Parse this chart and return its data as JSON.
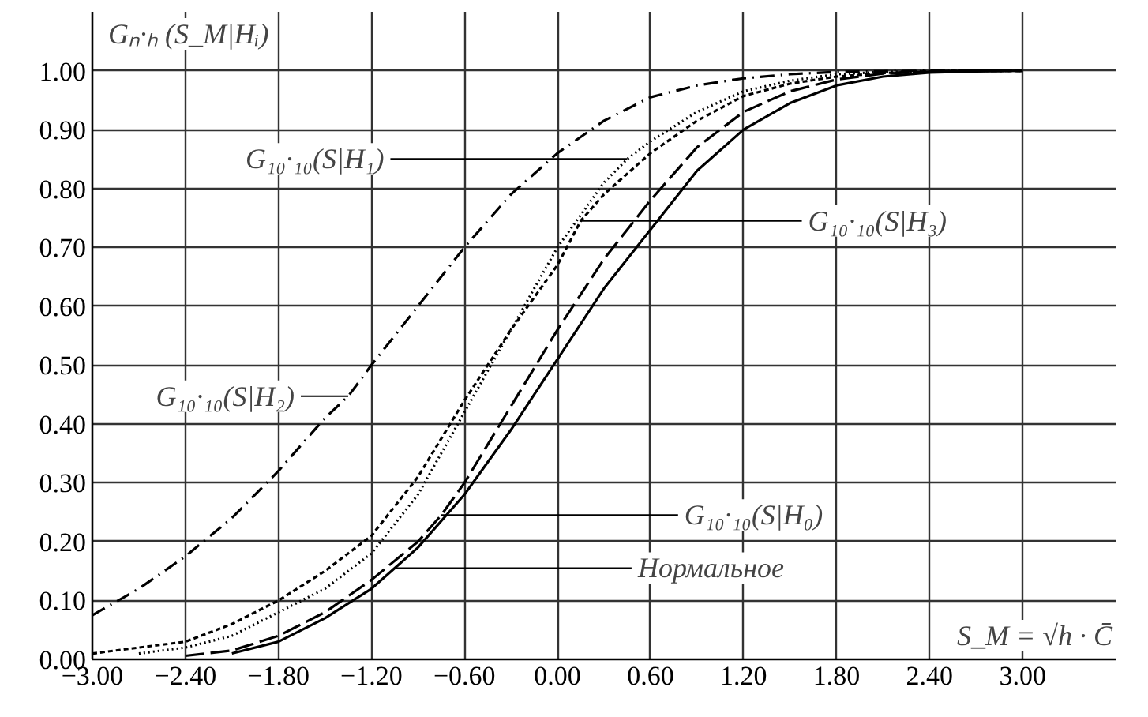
{
  "chart_data": {
    "type": "line",
    "xlabel": "S_M = √h · C̄",
    "ylabel": "Gₙ·ₕ (S_M|Hᵢ)",
    "series": [
      {
        "color": "#000000",
        "line_style": "dashdot",
        "x": [
          -3.0,
          -2.7,
          -2.4,
          -2.1,
          -1.8,
          -1.5,
          -1.35,
          -1.2,
          -0.9,
          -0.6,
          -0.3,
          0.0,
          0.3,
          0.6,
          0.9,
          1.2,
          1.5,
          1.8,
          2.1,
          2.4,
          2.7,
          3.0
        ],
        "values": [
          0.075,
          0.12,
          0.175,
          0.24,
          0.32,
          0.41,
          0.447,
          0.5,
          0.6,
          0.7,
          0.79,
          0.86,
          0.915,
          0.955,
          0.975,
          0.987,
          0.994,
          0.998,
          0.999,
          1.0,
          1.0,
          1.0
        ]
      },
      {
        "color": "#000000",
        "line_style": "dotted",
        "x": [
          -2.7,
          -2.4,
          -2.1,
          -1.8,
          -1.5,
          -1.2,
          -0.9,
          -0.6,
          -0.3,
          0.0,
          0.3,
          0.45,
          0.6,
          0.9,
          1.2,
          1.5,
          1.8,
          2.1,
          2.4,
          2.7,
          3.0
        ],
        "values": [
          0.01,
          0.02,
          0.04,
          0.08,
          0.12,
          0.18,
          0.28,
          0.42,
          0.56,
          0.7,
          0.81,
          0.85,
          0.88,
          0.93,
          0.965,
          0.983,
          0.994,
          0.998,
          0.999,
          1.0,
          1.0
        ]
      },
      {
        "color": "#000000",
        "line_style": "shortdash",
        "x": [
          -3.0,
          -2.7,
          -2.4,
          -2.1,
          -1.8,
          -1.5,
          -1.2,
          -0.9,
          -0.6,
          -0.3,
          0.0,
          0.15,
          0.3,
          0.6,
          0.9,
          1.2,
          1.5,
          1.8,
          2.1,
          2.4,
          2.7,
          3.0
        ],
        "values": [
          0.01,
          0.02,
          0.03,
          0.06,
          0.1,
          0.15,
          0.21,
          0.31,
          0.44,
          0.56,
          0.67,
          0.745,
          0.79,
          0.86,
          0.915,
          0.957,
          0.978,
          0.99,
          0.996,
          0.999,
          1.0,
          1.0
        ]
      },
      {
        "color": "#000000",
        "line_style": "dashed",
        "x": [
          -2.4,
          -2.1,
          -1.8,
          -1.5,
          -1.2,
          -0.9,
          -0.75,
          -0.6,
          -0.3,
          0.0,
          0.3,
          0.6,
          0.9,
          1.2,
          1.5,
          1.8,
          2.1,
          2.4,
          2.7,
          3.0
        ],
        "values": [
          0.006,
          0.015,
          0.04,
          0.08,
          0.135,
          0.2,
          0.245,
          0.3,
          0.43,
          0.56,
          0.68,
          0.78,
          0.87,
          0.93,
          0.965,
          0.985,
          0.995,
          0.998,
          1.0,
          1.0
        ]
      },
      {
        "color": "#000000",
        "line_style": "solid",
        "x": [
          -2.1,
          -1.8,
          -1.5,
          -1.2,
          -1.05,
          -0.9,
          -0.6,
          -0.3,
          0.0,
          0.3,
          0.6,
          0.9,
          1.2,
          1.5,
          1.8,
          2.1,
          2.4,
          2.7,
          3.0
        ],
        "values": [
          0.01,
          0.03,
          0.07,
          0.12,
          0.155,
          0.19,
          0.28,
          0.39,
          0.51,
          0.63,
          0.73,
          0.83,
          0.9,
          0.945,
          0.975,
          0.99,
          0.997,
          0.999,
          1.0
        ]
      }
    ],
    "annotations": [
      {
        "text": "G₁₀·₁₀(S|H₁)",
        "x": 0.45,
        "y": 0.85
      },
      {
        "text": "G₁₀·₁₀(S|H₃)",
        "x": 0.15,
        "y": 0.745
      },
      {
        "text": "G₁₀·₁₀(S|H₂)",
        "x": -1.35,
        "y": 0.447
      },
      {
        "text": "G₁₀·₁₀(S|H₀)",
        "x": -0.75,
        "y": 0.245
      },
      {
        "text": "Нормальное",
        "x": -1.05,
        "y": 0.155
      }
    ],
    "xlim": [
      -3.0,
      3.6
    ],
    "ylim": [
      0.0,
      1.1
    ],
    "xticks": [
      {
        "value": -3.0,
        "label": "−3.00"
      },
      {
        "value": -2.4,
        "label": "−2.40"
      },
      {
        "value": -1.8,
        "label": "−1.80"
      },
      {
        "value": -1.2,
        "label": "−1.20"
      },
      {
        "value": -0.6,
        "label": "−0.60"
      },
      {
        "value": 0.0,
        "label": "0.00"
      },
      {
        "value": 0.6,
        "label": "0.60"
      },
      {
        "value": 1.2,
        "label": "1.20"
      },
      {
        "value": 1.8,
        "label": "1.80"
      },
      {
        "value": 2.4,
        "label": "2.40"
      },
      {
        "value": 3.0,
        "label": "3.00"
      }
    ],
    "yticks": [
      {
        "value": 0.0,
        "label": "0.00"
      },
      {
        "value": 0.1,
        "label": "0.10"
      },
      {
        "value": 0.2,
        "label": "0.20"
      },
      {
        "value": 0.3,
        "label": "0.30"
      },
      {
        "value": 0.4,
        "label": "0.40"
      },
      {
        "value": 0.5,
        "label": "0.50"
      },
      {
        "value": 0.6,
        "label": "0.60"
      },
      {
        "value": 0.7,
        "label": "0.70"
      },
      {
        "value": 0.8,
        "label": "0.80"
      },
      {
        "value": 0.9,
        "label": "0.90"
      },
      {
        "value": 1.0,
        "label": "1.00"
      }
    ],
    "grid": true
  }
}
